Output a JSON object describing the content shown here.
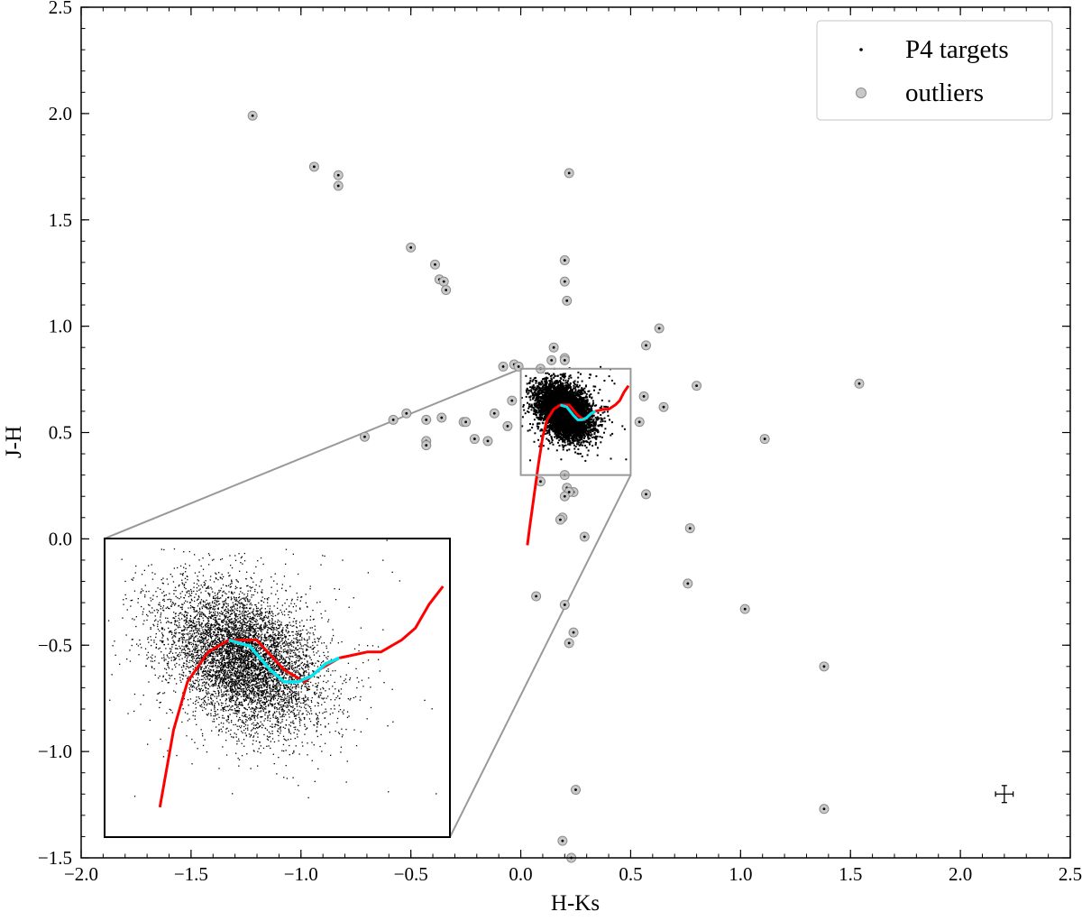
{
  "chart_data": {
    "type": "scatter",
    "xlabel": "H-Ks",
    "ylabel": "J-H",
    "xlim": [
      -2.0,
      2.5
    ],
    "ylim": [
      -1.5,
      2.5
    ],
    "xticks": [
      -2.0,
      -1.5,
      -1.0,
      -0.5,
      0.0,
      0.5,
      1.0,
      1.5,
      2.0,
      2.5
    ],
    "yticks": [
      -1.5,
      -1.0,
      -0.5,
      0.0,
      0.5,
      1.0,
      1.5,
      2.0,
      2.5
    ],
    "xtick_labels": [
      "−2.0",
      "−1.5",
      "−1.0",
      "−0.5",
      "0.0",
      "0.5",
      "1.0",
      "1.5",
      "2.0",
      "2.5"
    ],
    "ytick_labels": [
      "−1.5",
      "−1.0",
      "−0.5",
      "0.0",
      "0.5",
      "1.0",
      "1.5",
      "2.0",
      "2.5"
    ],
    "grid": false,
    "legend": {
      "placement": "upper right",
      "entries": [
        {
          "label": "P4 targets",
          "marker": "small black dot"
        },
        {
          "label": "outliers",
          "marker": "grey circle"
        }
      ]
    },
    "colors": {
      "targets": "#000000",
      "outliers_fill": "#c8c8c8",
      "outliers_edge": "#8c8c8c",
      "red_track": "#ff0000",
      "cyan_track": "#00e5ee",
      "zoom_box": "#999999"
    },
    "p4_targets_cluster": {
      "center": [
        0.2,
        0.6
      ],
      "x_range": [
        0.0,
        0.48
      ],
      "y_range": [
        0.35,
        0.8
      ],
      "trend": "elongated, J-H decreases as H-Ks increases"
    },
    "outliers": [
      [
        -1.22,
        1.99
      ],
      [
        -0.94,
        1.75
      ],
      [
        -0.83,
        1.71
      ],
      [
        -0.83,
        1.66
      ],
      [
        -0.5,
        1.37
      ],
      [
        -0.39,
        1.29
      ],
      [
        -0.37,
        1.22
      ],
      [
        -0.35,
        1.21
      ],
      [
        -0.34,
        1.17
      ],
      [
        0.22,
        1.72
      ],
      [
        0.2,
        1.31
      ],
      [
        0.2,
        1.21
      ],
      [
        0.21,
        1.12
      ],
      [
        0.15,
        0.9
      ],
      [
        0.2,
        0.85
      ],
      [
        0.14,
        0.84
      ],
      [
        0.2,
        0.84
      ],
      [
        0.63,
        0.99
      ],
      [
        0.57,
        0.91
      ],
      [
        0.8,
        0.72
      ],
      [
        0.65,
        0.62
      ],
      [
        0.56,
        0.67
      ],
      [
        0.54,
        0.55
      ],
      [
        1.54,
        0.73
      ],
      [
        1.11,
        0.47
      ],
      [
        -0.08,
        0.81
      ],
      [
        -0.03,
        0.82
      ],
      [
        -0.01,
        0.81
      ],
      [
        0.09,
        0.8
      ],
      [
        -0.04,
        0.65
      ],
      [
        -0.06,
        0.53
      ],
      [
        -0.12,
        0.59
      ],
      [
        -0.36,
        0.57
      ],
      [
        -0.26,
        0.55
      ],
      [
        -0.25,
        0.55
      ],
      [
        -0.43,
        0.56
      ],
      [
        -0.52,
        0.59
      ],
      [
        -0.58,
        0.56
      ],
      [
        -0.71,
        0.48
      ],
      [
        -0.43,
        0.46
      ],
      [
        -0.43,
        0.44
      ],
      [
        -0.21,
        0.47
      ],
      [
        -0.15,
        0.46
      ],
      [
        0.2,
        0.3
      ],
      [
        0.09,
        0.27
      ],
      [
        0.21,
        0.24
      ],
      [
        0.24,
        0.22
      ],
      [
        0.22,
        0.22
      ],
      [
        0.2,
        0.2
      ],
      [
        0.19,
        0.1
      ],
      [
        0.18,
        0.09
      ],
      [
        0.29,
        0.01
      ],
      [
        0.57,
        0.21
      ],
      [
        0.07,
        -0.27
      ],
      [
        0.2,
        -0.31
      ],
      [
        0.24,
        -0.44
      ],
      [
        0.22,
        -0.49
      ],
      [
        0.77,
        0.05
      ],
      [
        0.76,
        -0.21
      ],
      [
        1.02,
        -0.33
      ],
      [
        1.38,
        -0.6
      ],
      [
        0.25,
        -1.18
      ],
      [
        1.38,
        -1.27
      ],
      [
        0.19,
        -1.42
      ],
      [
        0.23,
        -1.5
      ]
    ],
    "error_bar": {
      "x": 2.2,
      "y": -1.2,
      "xerr": 0.04,
      "yerr": 0.04
    },
    "red_track": [
      [
        0.03,
        -0.03
      ],
      [
        0.04,
        0.05
      ],
      [
        0.06,
        0.2
      ],
      [
        0.08,
        0.35
      ],
      [
        0.1,
        0.48
      ],
      [
        0.12,
        0.56
      ],
      [
        0.15,
        0.61
      ],
      [
        0.18,
        0.63
      ],
      [
        0.22,
        0.63
      ],
      [
        0.26,
        0.58
      ],
      [
        0.29,
        0.56
      ],
      [
        0.31,
        0.58
      ],
      [
        0.34,
        0.6
      ],
      [
        0.38,
        0.61
      ],
      [
        0.4,
        0.61
      ],
      [
        0.43,
        0.63
      ],
      [
        0.45,
        0.65
      ],
      [
        0.47,
        0.69
      ],
      [
        0.49,
        0.72
      ]
    ],
    "cyan_track": [
      [
        0.18,
        0.63
      ],
      [
        0.21,
        0.62
      ],
      [
        0.24,
        0.58
      ],
      [
        0.26,
        0.56
      ],
      [
        0.28,
        0.56
      ],
      [
        0.3,
        0.57
      ],
      [
        0.32,
        0.59
      ],
      [
        0.34,
        0.6
      ]
    ],
    "zoom_region": {
      "x": [
        0.0,
        0.5
      ],
      "y": [
        0.3,
        0.8
      ]
    }
  }
}
